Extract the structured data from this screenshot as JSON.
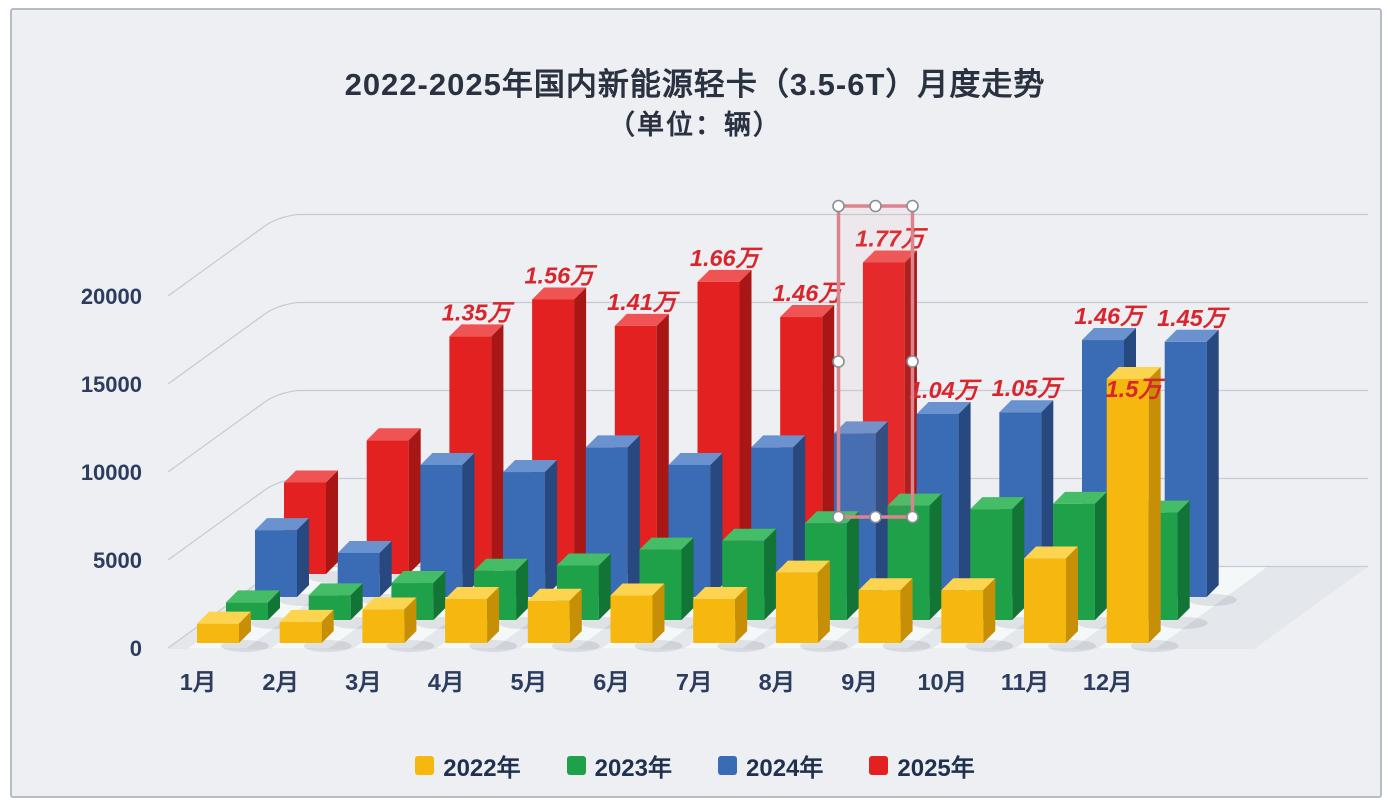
{
  "title": {
    "line1": "2022-2025年国内新能源轻卡（3.5-6T）月度走势",
    "line2": "（单位：辆）"
  },
  "chart_data": {
    "type": "bar",
    "projection": "3d",
    "unit": "辆",
    "title": "2022-2025年国内新能源轻卡（3.5-6T）月度走势",
    "subtitle": "（单位：辆）",
    "categories": [
      "1月",
      "2月",
      "3月",
      "4月",
      "5月",
      "6月",
      "7月",
      "8月",
      "9月",
      "10月",
      "11月",
      "12月"
    ],
    "y_axis": {
      "ticks": [
        0,
        5000,
        10000,
        15000,
        20000
      ],
      "tick_labels": [
        "0",
        "5000",
        "10000",
        "15000",
        "20000"
      ],
      "ylim": [
        0,
        20000
      ],
      "grid": true
    },
    "series": [
      {
        "name": "2022年",
        "color": "#f6b70f",
        "color_top": "#fdd44f",
        "color_side": "#c78f06",
        "values": [
          1100,
          1200,
          1900,
          2500,
          2400,
          2700,
          2500,
          4000,
          3000,
          3000,
          4800,
          15000
        ],
        "data_labels": {
          "11": "1.5万"
        },
        "label_offsets": {
          "11": [
            0,
            34
          ]
        }
      },
      {
        "name": "2023年",
        "color": "#1fa14a",
        "color_top": "#45bd66",
        "color_side": "#127435",
        "values": [
          1000,
          1400,
          2100,
          2800,
          3100,
          4000,
          4500,
          5500,
          6500,
          6300,
          6600,
          6100
        ],
        "data_labels": {}
      },
      {
        "name": "2024年",
        "color": "#3a6bb5",
        "color_top": "#6a92cf",
        "color_side": "#27497f",
        "values": [
          3800,
          2500,
          7500,
          7100,
          8500,
          7500,
          8500,
          9300,
          10400,
          10500,
          14600,
          14500
        ],
        "data_labels": {
          "8": "1.04万",
          "9": "1.05万",
          "10": "1.46万",
          "11": "1.45万"
        }
      },
      {
        "name": "2025年",
        "color": "#e32121",
        "color_top": "#ef5353",
        "color_side": "#a81616",
        "values": [
          5200,
          7600,
          13500,
          15600,
          14100,
          16600,
          14600,
          17700,
          null,
          null,
          null,
          null
        ],
        "data_labels": {
          "2": "1.35万",
          "3": "1.56万",
          "4": "1.41万",
          "5": "1.66万",
          "6": "1.46万",
          "7": "1.77万"
        }
      }
    ],
    "data_label_color": "#d8262c",
    "legend": {
      "position": "bottom",
      "items": [
        "2022年",
        "2023年",
        "2024年",
        "2025年"
      ]
    }
  },
  "selection": {
    "selected_bar_series": "2025年",
    "selected_bar_month": "8月",
    "handle_count": 8
  }
}
